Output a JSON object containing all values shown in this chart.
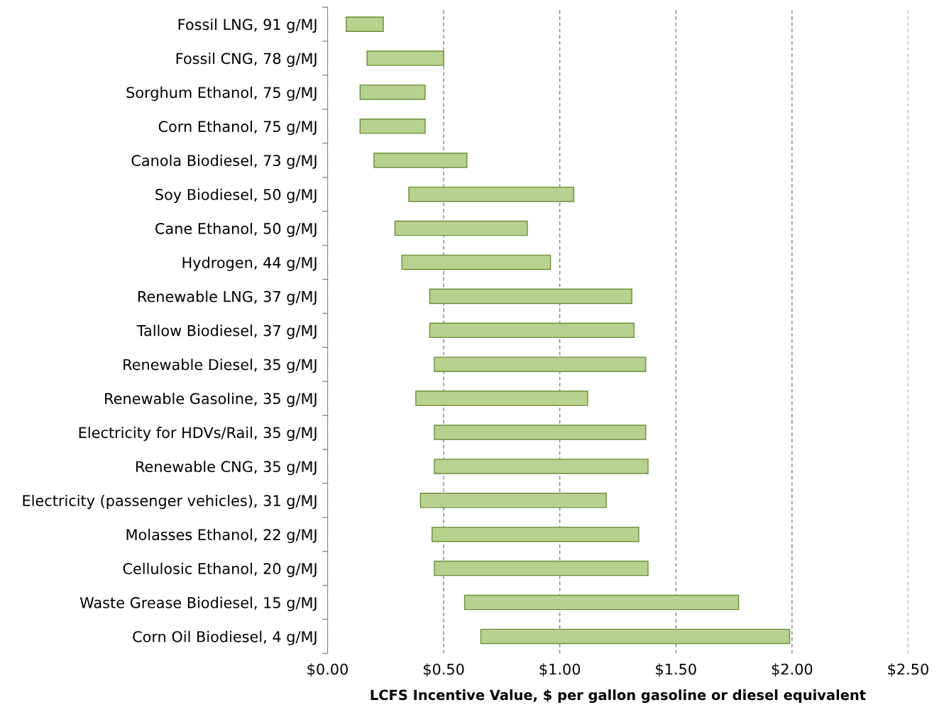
{
  "chart_data": {
    "type": "bar",
    "orientation": "horizontal",
    "xlabel": "LCFS Incentive Value, $ per gallon gasoline or diesel equivalent",
    "categories": [
      "Fossil LNG, 91 g/MJ",
      "Fossil CNG, 78 g/MJ",
      "Sorghum Ethanol, 75 g/MJ",
      "Corn Ethanol, 75 g/MJ",
      "Canola Biodiesel, 73 g/MJ",
      "Soy Biodiesel, 50 g/MJ",
      "Cane Ethanol, 50 g/MJ",
      "Hydrogen, 44 g/MJ",
      "Renewable LNG, 37 g/MJ",
      "Tallow Biodiesel, 37 g/MJ",
      "Renewable Diesel, 35 g/MJ",
      "Renewable Gasoline, 35 g/MJ",
      "Electricity for HDVs/Rail, 35 g/MJ",
      "Renewable CNG, 35 g/MJ",
      "Electricity (passenger vehicles), 31 g/MJ",
      "Molasses Ethanol, 22 g/MJ",
      "Cellulosic Ethanol, 20 g/MJ",
      "Waste Grease Biodiesel, 15 g/MJ",
      "Corn Oil Biodiesel, 4 g/MJ"
    ],
    "base": [
      0.08,
      0.17,
      0.14,
      0.14,
      0.2,
      0.35,
      0.29,
      0.32,
      0.44,
      0.44,
      0.46,
      0.38,
      0.46,
      0.46,
      0.4,
      0.45,
      0.46,
      0.59,
      0.66
    ],
    "values": [
      0.16,
      0.33,
      0.28,
      0.28,
      0.4,
      0.71,
      0.57,
      0.64,
      0.87,
      0.88,
      0.91,
      0.74,
      0.91,
      0.92,
      0.8,
      0.89,
      0.92,
      1.18,
      1.33
    ],
    "color": "#b9d18f",
    "xlim": [
      0,
      2.5
    ],
    "xticks": [
      {
        "value": 0,
        "label": "$0.00"
      },
      {
        "value": 0.5,
        "label": "$0.50"
      },
      {
        "value": 1.0,
        "label": "$1.00"
      },
      {
        "value": 1.5,
        "label": "$1.50"
      },
      {
        "value": 2.0,
        "label": "$2.00"
      },
      {
        "value": 2.5,
        "label": "$2.50"
      }
    ],
    "grid": "x",
    "legend": false
  }
}
